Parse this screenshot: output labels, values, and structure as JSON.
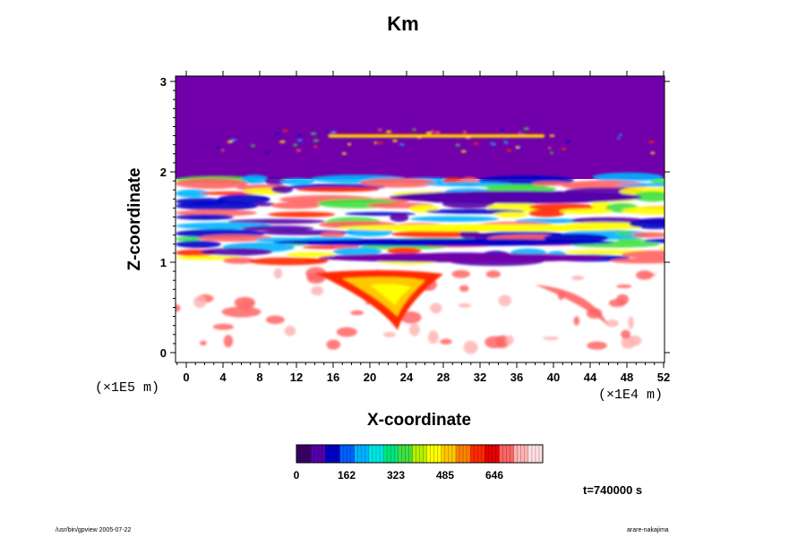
{
  "chart_data": {
    "type": "heatmap",
    "title": "Km",
    "xlabel": "X-coordinate",
    "ylabel": "Z-coordinate",
    "x_unit": "(×1E4 m)",
    "y_unit": "(×1E5 m)",
    "xlim": [
      -1,
      52
    ],
    "ylim": [
      -0.08,
      3.05
    ],
    "x_ticks": [
      "0",
      "4",
      "8",
      "12",
      "16",
      "20",
      "24",
      "28",
      "32",
      "36",
      "40",
      "44",
      "48",
      "52"
    ],
    "y_ticks": [
      "0",
      "1",
      "2",
      "3"
    ],
    "colorbar": {
      "ticks": [
        "0",
        "162",
        "323",
        "485",
        "646"
      ],
      "colors": [
        "#3a0066",
        "#5500aa",
        "#0000c8",
        "#0060ff",
        "#00b4ff",
        "#00e6e6",
        "#00e680",
        "#40e040",
        "#b4f000",
        "#ffff00",
        "#ffc800",
        "#ff8000",
        "#ff2a00",
        "#e60000",
        "#ff6464",
        "#ffb4b4",
        "#ffe0e0"
      ]
    },
    "regions": [
      {
        "name": "upper",
        "z_range": [
          2.0,
          3.05
        ],
        "value_level": "near 0 (purple)",
        "notes": "scattered small patches along z≈2.2–2.45"
      },
      {
        "name": "turbulent band",
        "z_range": [
          0.95,
          1.95
        ],
        "value_level": "mixed, 0 to above 646",
        "notes": "horizontal streaks of blue, green, yellow and red"
      },
      {
        "name": "lower",
        "z_range": [
          -0.08,
          0.95
        ],
        "value_level": "mostly above 646 (white)",
        "notes": "red/yellow plume near x≈16–28, z≈0.4–0.9; reddish patches"
      }
    ],
    "grid": false,
    "legend": "colorbar-bottom"
  },
  "annotations": {
    "time": "t=740000 s",
    "footer_left": "/usr/bin/gpview 2005-07-22",
    "footer_right": "arare-nakajima"
  }
}
